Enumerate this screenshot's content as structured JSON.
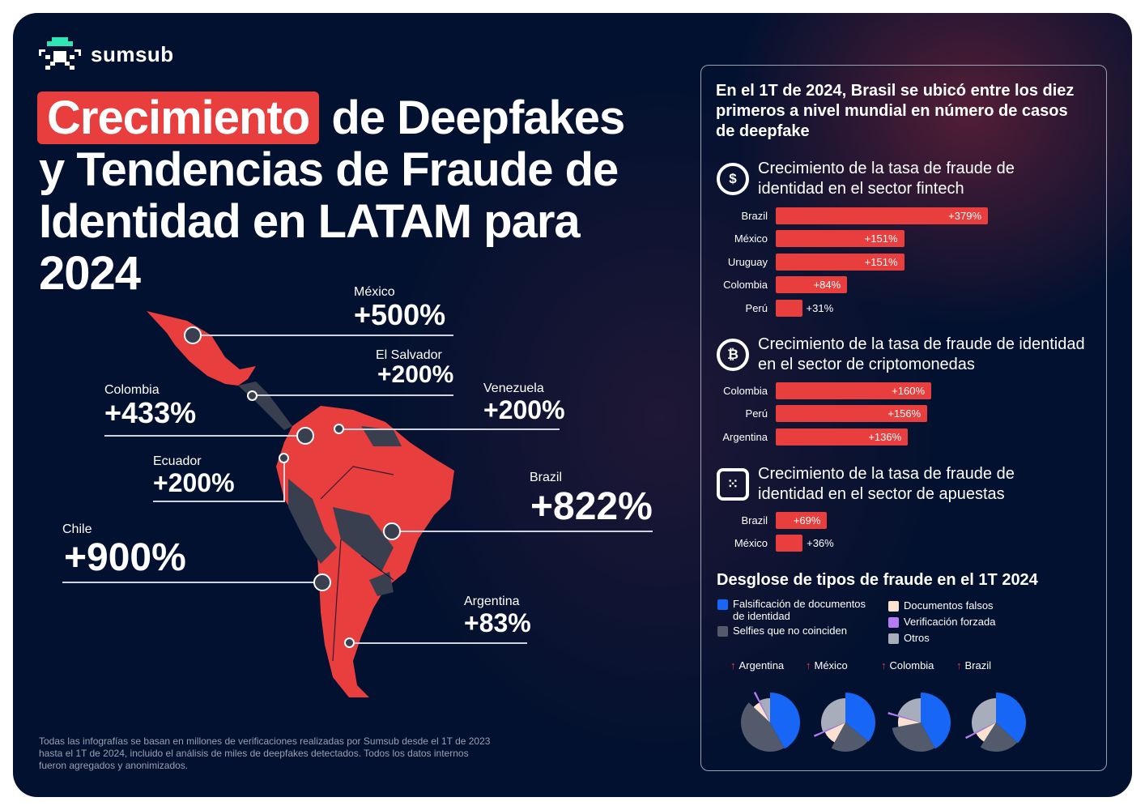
{
  "brand": {
    "name": "sumsub"
  },
  "title": {
    "highlight": "Crecimiento",
    "rest": " de Deepfakes y Tendencias de Fraude de Identidad en LATAM para 2024"
  },
  "map": [
    {
      "country": "México",
      "value": "+500%"
    },
    {
      "country": "El Salvador",
      "value": "+200%"
    },
    {
      "country": "Colombia",
      "value": "+433%"
    },
    {
      "country": "Venezuela",
      "value": "+200%"
    },
    {
      "country": "Ecuador",
      "value": "+200%"
    },
    {
      "country": "Brazil",
      "value": "+822%"
    },
    {
      "country": "Chile",
      "value": "+900%"
    },
    {
      "country": "Argentina",
      "value": "+83%"
    }
  ],
  "panel": {
    "headline": "En el 1T de 2024, Brasil se ubicó entre los diez primeros a nivel mundial en número de casos de deepfake"
  },
  "footer": "Todas las infografías se basan en millones de verificaciones realizadas por Sumsub desde el 1T de 2023 hasta el 1T de 2024, incluido el análisis de miles de deepfakes detectados. Todos los datos internos fueron agregados y anonimizados.",
  "colors": {
    "accent": "#e83e3e",
    "bg": "#02112f",
    "blue": "#1766f5",
    "dark_gray": "#525a6b",
    "peach": "#fbe1d0",
    "purple": "#b57cf2",
    "light_gray": "#a7adbb"
  },
  "chart_data": [
    {
      "type": "bar",
      "title": "Crecimiento de la tasa de fraude de identidad en el sector fintech",
      "icon": "dollar-cycle-icon",
      "categories": [
        "Brazil",
        "México",
        "Uruguay",
        "Colombia",
        "Perú"
      ],
      "values": [
        379,
        151,
        151,
        84,
        31
      ],
      "labels": [
        "+379%",
        "+151%",
        "+151%",
        "+84%",
        "+31%"
      ],
      "unit": "%"
    },
    {
      "type": "bar",
      "title": "Crecimiento de la tasa de fraude de identidad en el sector de criptomonedas",
      "icon": "bitcoin-icon",
      "categories": [
        "Colombia",
        "Perú",
        "Argentina"
      ],
      "values": [
        160,
        156,
        136
      ],
      "labels": [
        "+160%",
        "+156%",
        "+136%"
      ],
      "unit": "%"
    },
    {
      "type": "bar",
      "title": "Crecimiento de la tasa de fraude de identidad en el sector de apuestas",
      "icon": "dice-icon",
      "categories": [
        "Brazil",
        "México"
      ],
      "values": [
        69,
        36
      ],
      "labels": [
        "+69%",
        "+36%"
      ],
      "unit": "%"
    },
    {
      "type": "pie",
      "title": "Desglose de tipos de fraude en el 1T 2024",
      "legend": [
        "Falsificación de documentos de identidad",
        "Selfies que no coinciden",
        "Documentos falsos",
        "Verificación forzada",
        "Otros"
      ],
      "legend_colors": [
        "#1766f5",
        "#525a6b",
        "#fbe1d0",
        "#b57cf2",
        "#a7adbb"
      ],
      "charts": [
        {
          "name": "Argentina",
          "values": [
            42,
            45,
            5,
            1,
            7
          ]
        },
        {
          "name": "México",
          "values": [
            36,
            22,
            10,
            1,
            31
          ]
        },
        {
          "name": "Colombia",
          "values": [
            42,
            30,
            7,
            1,
            20
          ]
        },
        {
          "name": "Brazil",
          "values": [
            37,
            22,
            8,
            1,
            32
          ]
        }
      ]
    }
  ]
}
